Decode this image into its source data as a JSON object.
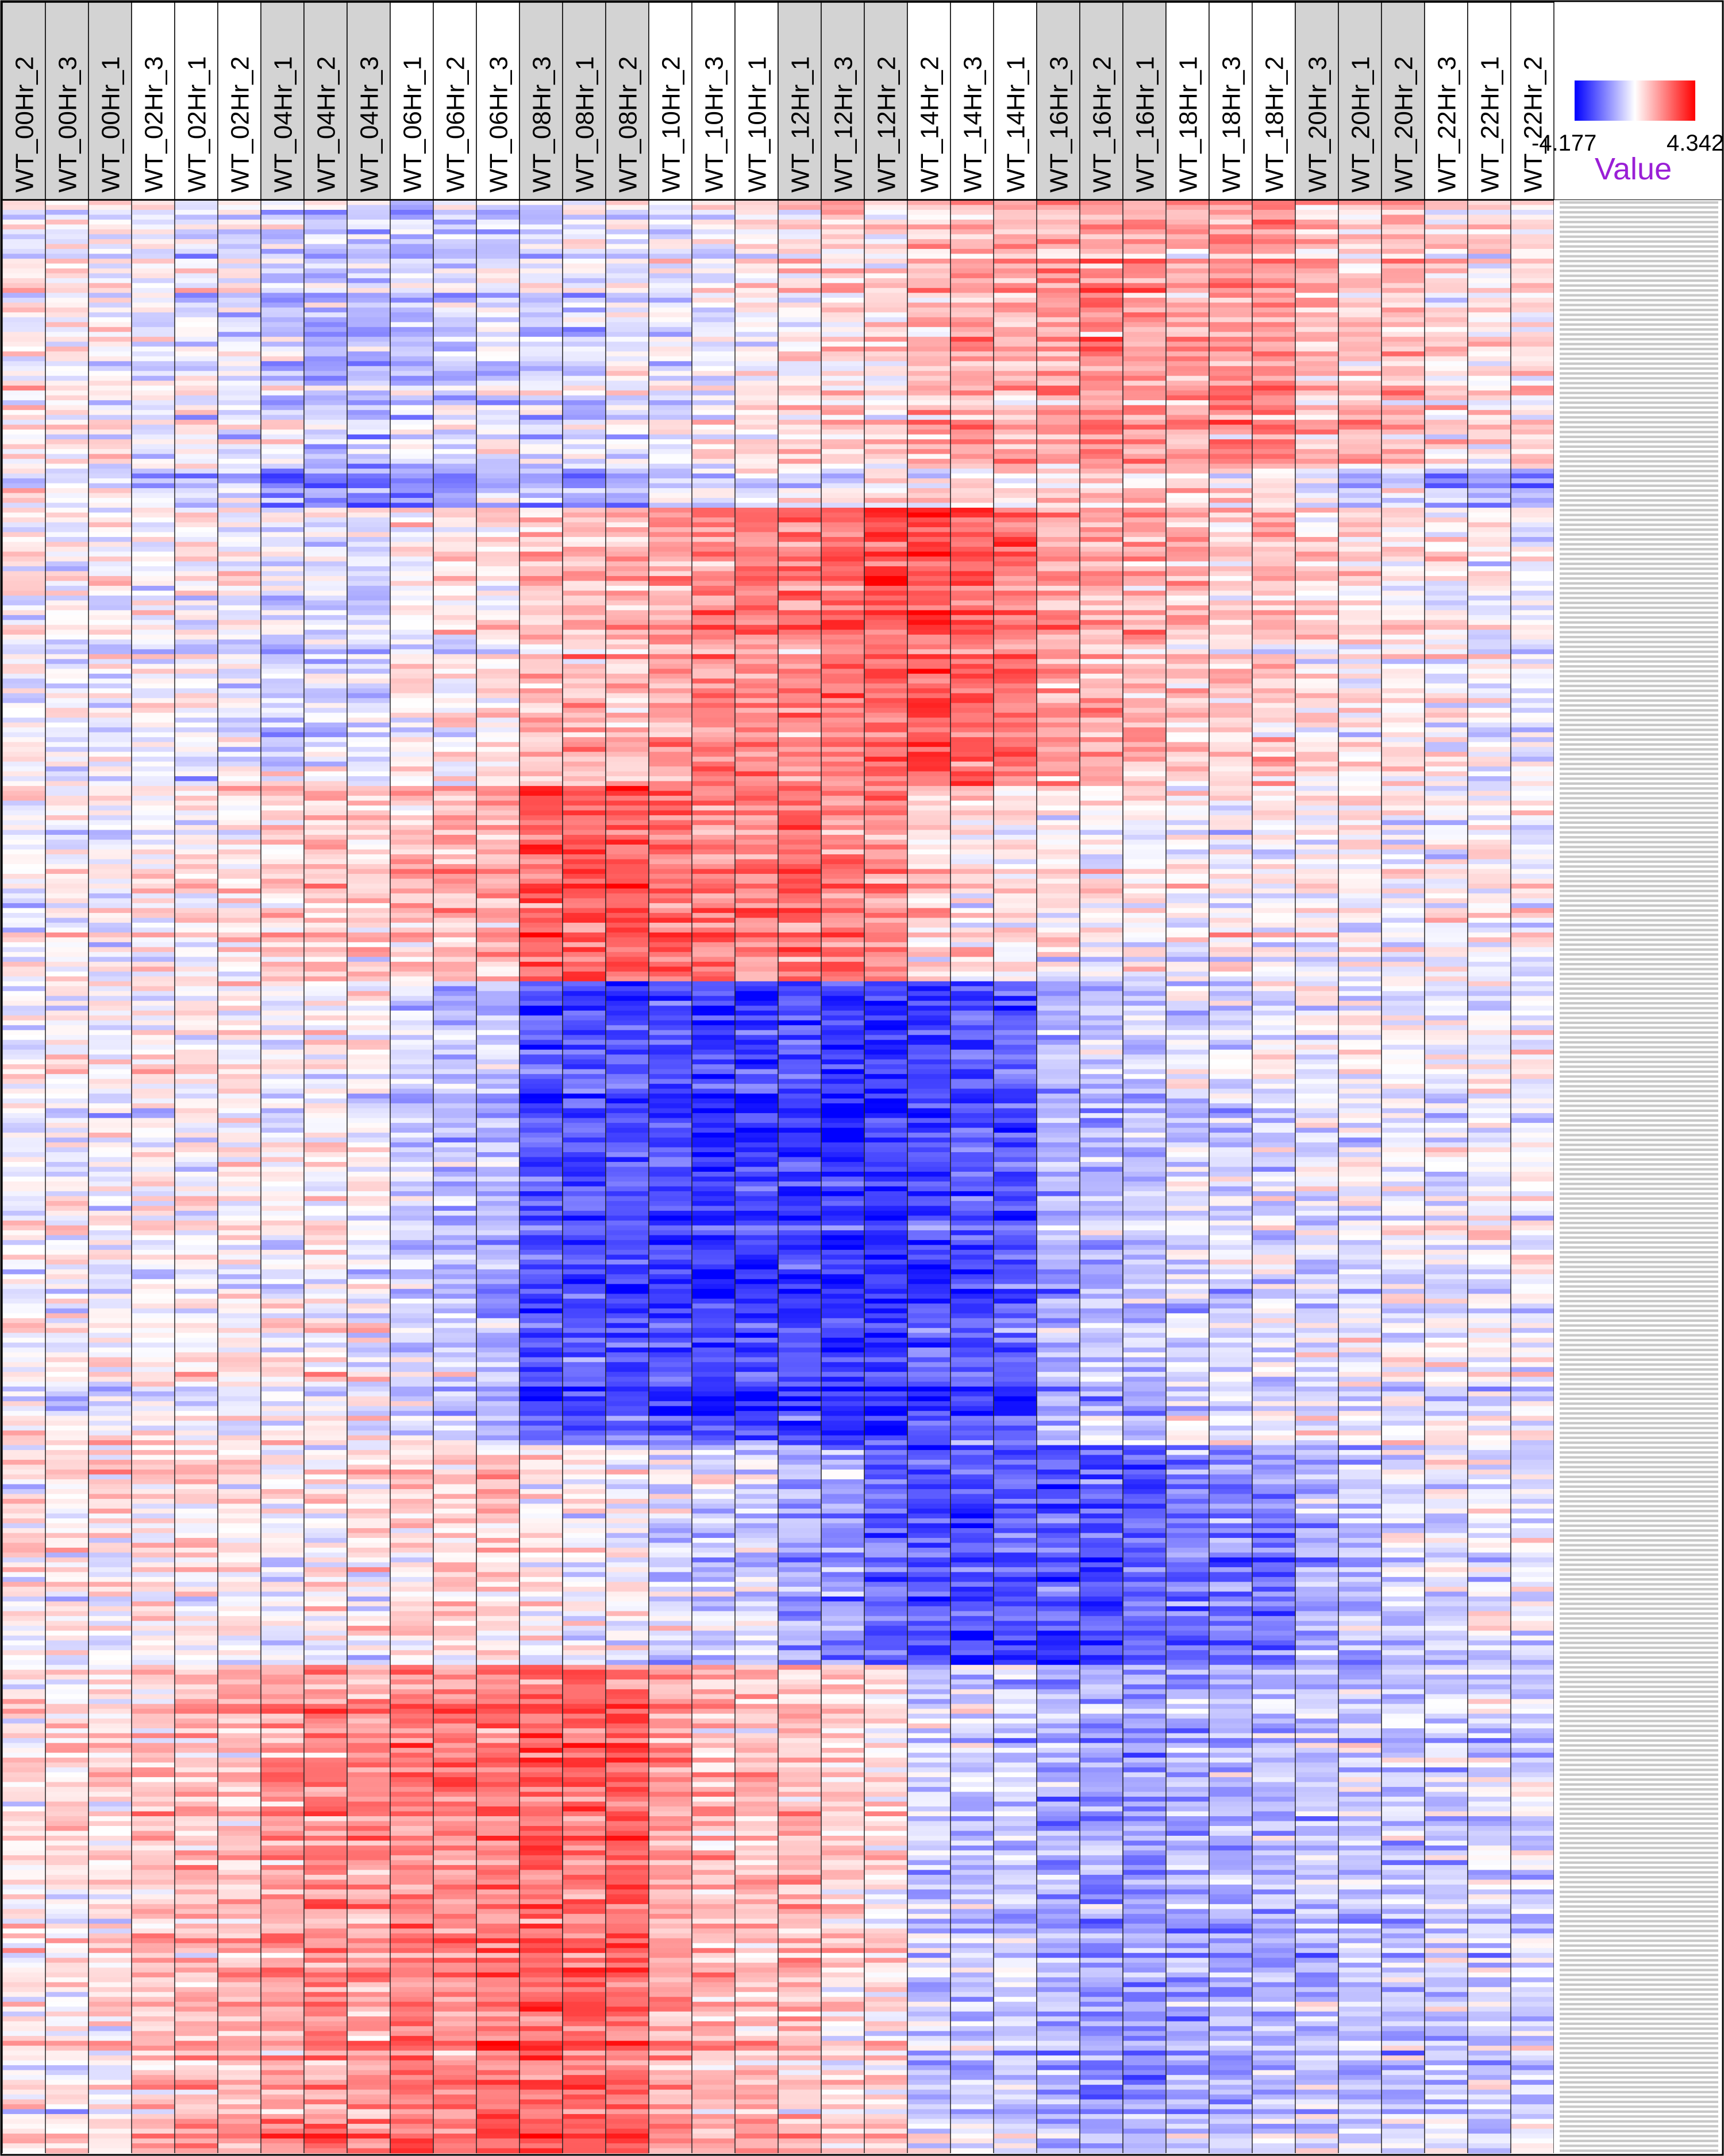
{
  "chart_data": {
    "type": "heatmap",
    "title": "",
    "columns": [
      "WT_00Hr_2",
      "WT_00Hr_3",
      "WT_00Hr_1",
      "WT_02Hr_3",
      "WT_02Hr_1",
      "WT_02Hr_2",
      "WT_04Hr_1",
      "WT_04Hr_2",
      "WT_04Hr_3",
      "WT_06Hr_1",
      "WT_06Hr_2",
      "WT_06Hr_3",
      "WT_08Hr_3",
      "WT_08Hr_1",
      "WT_08Hr_2",
      "WT_10Hr_2",
      "WT_10Hr_3",
      "WT_10Hr_1",
      "WT_12Hr_1",
      "WT_12Hr_3",
      "WT_12Hr_2",
      "WT_14Hr_2",
      "WT_14Hr_3",
      "WT_14Hr_1",
      "WT_16Hr_3",
      "WT_16Hr_2",
      "WT_16Hr_1",
      "WT_18Hr_1",
      "WT_18Hr_3",
      "WT_18Hr_2",
      "WT_20Hr_3",
      "WT_20Hr_1",
      "WT_20Hr_2",
      "WT_22Hr_3",
      "WT_22Hr_1",
      "WT_22Hr_2"
    ],
    "column_header_shaded": [
      true,
      true,
      true,
      false,
      false,
      false,
      true,
      true,
      true,
      false,
      false,
      false,
      true,
      true,
      true,
      false,
      false,
      false,
      true,
      true,
      true,
      false,
      false,
      false,
      true,
      true,
      true,
      false,
      false,
      false,
      true,
      true,
      true,
      false,
      false,
      false
    ],
    "row_count": 400,
    "value_range": [
      -4.177,
      4.342
    ],
    "colorscale": {
      "low": "#0000ff",
      "mid": "#ffffff",
      "high": "#ff0000"
    },
    "clusters": [
      {
        "rows": [
          0,
          55
        ],
        "profile": [
          0.1,
          0.1,
          0.1,
          -0.1,
          -0.2,
          -0.2,
          -0.6,
          -0.9,
          -0.7,
          -0.7,
          -0.6,
          -0.5,
          -0.5,
          -0.4,
          -0.4,
          -0.3,
          -0.1,
          0.2,
          0.3,
          0.5,
          0.4,
          1.0,
          1.2,
          1.2,
          1.3,
          1.5,
          1.4,
          1.4,
          1.5,
          1.6,
          1.0,
          0.8,
          1.0,
          0.4,
          0.3,
          0.3
        ]
      },
      {
        "rows": [
          55,
          63
        ],
        "profile": [
          -0.3,
          -0.4,
          -0.3,
          -0.8,
          -1.0,
          -1.0,
          -2.2,
          -2.0,
          -1.8,
          -1.8,
          -1.5,
          -1.3,
          -1.4,
          -1.3,
          -1.3,
          -0.6,
          -0.4,
          -0.3,
          -0.3,
          -0.2,
          0.2,
          0.1,
          0.2,
          0.3,
          0.4,
          0.5,
          0.6,
          0.3,
          0.3,
          0.1,
          -0.3,
          -1.0,
          -0.6,
          -1.5,
          -1.3,
          -1.5
        ]
      },
      {
        "rows": [
          63,
          120
        ],
        "profile": [
          0.0,
          0.0,
          0.0,
          -0.1,
          -0.1,
          -0.1,
          -0.4,
          -0.3,
          -0.3,
          0.2,
          0.3,
          0.4,
          0.9,
          1.1,
          1.2,
          1.5,
          1.6,
          1.8,
          2.0,
          2.1,
          2.4,
          2.5,
          2.3,
          2.2,
          1.4,
          1.3,
          1.2,
          0.9,
          0.8,
          0.8,
          0.5,
          0.4,
          0.4,
          0.1,
          0.0,
          0.0
        ]
      },
      {
        "rows": [
          120,
          160
        ],
        "profile": [
          0.0,
          0.0,
          -0.1,
          0.2,
          0.2,
          0.3,
          0.6,
          0.9,
          0.7,
          1.1,
          1.1,
          1.3,
          2.2,
          2.4,
          2.4,
          2.1,
          1.9,
          1.8,
          2.2,
          1.9,
          1.7,
          0.6,
          0.5,
          0.5,
          0.3,
          0.2,
          0.2,
          0.1,
          0.1,
          0.1,
          0.1,
          0.1,
          0.1,
          0.1,
          0.1,
          0.1
        ]
      },
      {
        "rows": [
          160,
          255
        ],
        "profile": [
          0.0,
          0.0,
          0.0,
          0.1,
          0.1,
          0.1,
          0.0,
          0.1,
          -0.1,
          -0.6,
          -0.8,
          -1.0,
          -2.3,
          -2.4,
          -2.5,
          -2.6,
          -2.8,
          -2.7,
          -2.7,
          -2.9,
          -3.0,
          -2.6,
          -2.5,
          -2.4,
          -1.1,
          -0.9,
          -0.8,
          -0.5,
          -0.4,
          -0.3,
          -0.3,
          -0.2,
          -0.1,
          -0.2,
          -0.1,
          -0.1
        ]
      },
      {
        "rows": [
          255,
          300
        ],
        "profile": [
          0.2,
          0.2,
          0.2,
          0.3,
          0.3,
          0.3,
          -0.1,
          0.2,
          0.2,
          0.6,
          0.5,
          0.6,
          0.2,
          0.0,
          0.0,
          -0.5,
          -0.6,
          -0.6,
          -1.2,
          -1.3,
          -2.2,
          -2.5,
          -2.6,
          -2.4,
          -2.3,
          -2.6,
          -2.4,
          -1.9,
          -1.8,
          -1.9,
          -1.2,
          -1.0,
          -0.6,
          -0.4,
          -0.3,
          -0.3
        ]
      },
      {
        "rows": [
          300,
          400
        ],
        "profile": [
          0.3,
          0.3,
          0.3,
          0.9,
          1.0,
          1.0,
          1.4,
          1.7,
          1.5,
          1.9,
          1.8,
          2.0,
          2.3,
          2.2,
          2.3,
          1.3,
          1.0,
          0.9,
          1.0,
          0.6,
          0.5,
          -0.6,
          -0.7,
          -0.7,
          -1.2,
          -1.4,
          -1.3,
          -1.2,
          -1.1,
          -1.0,
          -0.8,
          -0.7,
          -0.8,
          -0.6,
          -0.5,
          -0.5
        ]
      }
    ],
    "legend": {
      "title": "Value",
      "min_label": "-4.177",
      "max_label": "4.342",
      "placement": "top-right"
    },
    "title_color": "#9a1fd6"
  }
}
